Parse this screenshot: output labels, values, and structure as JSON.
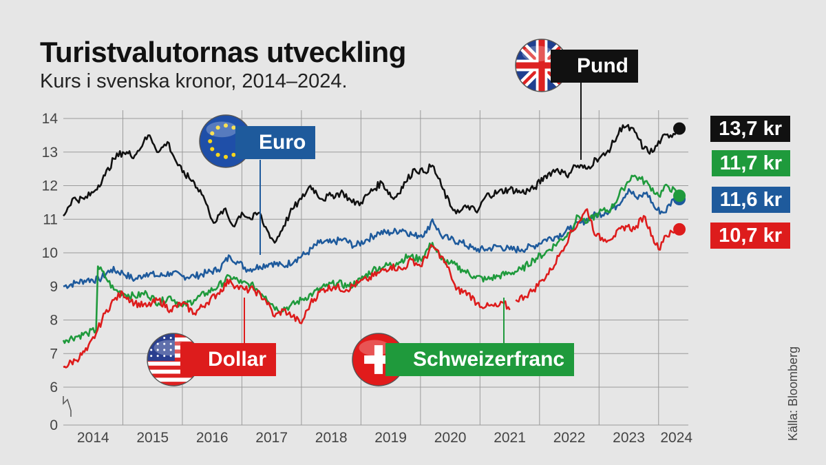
{
  "title": "Turistvalutornas utveckling",
  "subtitle": "Kurs i svenska kronor, 2014–2024.",
  "source": "Källa: Bloomberg",
  "colors": {
    "pund": "#111111",
    "euro": "#1e5a9c",
    "dollar": "#dd1c1c",
    "franc": "#1f9a3c",
    "background": "#e6e6e6",
    "grid": "#9a9a9a"
  },
  "callouts": {
    "pund": {
      "label": "Pund",
      "icon": "uk-flag-icon"
    },
    "euro": {
      "label": "Euro",
      "icon": "eu-flag-icon"
    },
    "dollar": {
      "label": "Dollar",
      "icon": "us-flag-icon"
    },
    "franc": {
      "label": "Schweizerfranc",
      "icon": "swiss-flag-icon"
    }
  },
  "end_labels": {
    "pund": "13,7 kr",
    "franc": "11,7 kr",
    "euro": "11,6 kr",
    "dollar": "10,7 kr"
  },
  "chart_data": {
    "type": "line",
    "y_axis_break": true,
    "ylim": [
      0,
      14
    ],
    "y_ticks": [
      "0",
      "6",
      "7",
      "8",
      "9",
      "10",
      "11",
      "12",
      "13",
      "14"
    ],
    "x_tick_labels": [
      "2014",
      "2015",
      "2016",
      "2017",
      "2018",
      "2019",
      "2020",
      "2021",
      "2022",
      "2023",
      "2024"
    ],
    "xlim": [
      2014.0,
      2024.5
    ],
    "grid": true,
    "series": [
      {
        "name": "Pund",
        "color": "#111111",
        "end_value": 13.7,
        "points": [
          [
            2014.0,
            11.1
          ],
          [
            2014.15,
            11.6
          ],
          [
            2014.35,
            11.6
          ],
          [
            2014.5,
            11.8
          ],
          [
            2014.7,
            12.3
          ],
          [
            2014.85,
            12.8
          ],
          [
            2015.0,
            13.0
          ],
          [
            2015.2,
            12.9
          ],
          [
            2015.35,
            13.3
          ],
          [
            2015.45,
            13.5
          ],
          [
            2015.6,
            13.0
          ],
          [
            2015.75,
            13.3
          ],
          [
            2015.9,
            12.7
          ],
          [
            2016.0,
            12.4
          ],
          [
            2016.2,
            12.1
          ],
          [
            2016.35,
            11.7
          ],
          [
            2016.45,
            11.2
          ],
          [
            2016.55,
            10.9
          ],
          [
            2016.7,
            11.3
          ],
          [
            2016.85,
            10.8
          ],
          [
            2017.0,
            11.2
          ],
          [
            2017.15,
            11.0
          ],
          [
            2017.3,
            11.2
          ],
          [
            2017.35,
            10.9
          ],
          [
            2017.45,
            10.6
          ],
          [
            2017.55,
            10.3
          ],
          [
            2017.7,
            10.8
          ],
          [
            2017.85,
            11.3
          ],
          [
            2018.0,
            11.6
          ],
          [
            2018.15,
            12.0
          ],
          [
            2018.35,
            11.6
          ],
          [
            2018.5,
            11.7
          ],
          [
            2018.7,
            11.8
          ],
          [
            2018.85,
            11.5
          ],
          [
            2019.0,
            11.5
          ],
          [
            2019.15,
            11.8
          ],
          [
            2019.35,
            12.1
          ],
          [
            2019.55,
            11.6
          ],
          [
            2019.75,
            12.1
          ],
          [
            2019.9,
            12.5
          ],
          [
            2020.05,
            12.4
          ],
          [
            2020.2,
            12.6
          ],
          [
            2020.35,
            12.0
          ],
          [
            2020.5,
            11.4
          ],
          [
            2020.65,
            11.2
          ],
          [
            2020.8,
            11.4
          ],
          [
            2020.95,
            11.2
          ],
          [
            2021.1,
            11.7
          ],
          [
            2021.3,
            11.8
          ],
          [
            2021.5,
            11.9
          ],
          [
            2021.7,
            11.8
          ],
          [
            2021.9,
            11.9
          ],
          [
            2022.1,
            12.3
          ],
          [
            2022.3,
            12.5
          ],
          [
            2022.45,
            12.3
          ],
          [
            2022.6,
            12.6
          ],
          [
            2022.8,
            12.5
          ],
          [
            2022.95,
            12.8
          ],
          [
            2023.1,
            12.9
          ],
          [
            2023.25,
            13.3
          ],
          [
            2023.4,
            13.8
          ],
          [
            2023.6,
            13.6
          ],
          [
            2023.75,
            13.1
          ],
          [
            2023.9,
            13.0
          ],
          [
            2024.05,
            13.4
          ],
          [
            2024.2,
            13.5
          ],
          [
            2024.35,
            13.7
          ]
        ]
      },
      {
        "name": "Euro",
        "color": "#1e5a9c",
        "end_value": 11.6,
        "points": [
          [
            2014.0,
            9.0
          ],
          [
            2014.2,
            9.1
          ],
          [
            2014.4,
            9.2
          ],
          [
            2014.6,
            9.2
          ],
          [
            2014.8,
            9.5
          ],
          [
            2015.0,
            9.4
          ],
          [
            2015.2,
            9.2
          ],
          [
            2015.4,
            9.4
          ],
          [
            2015.6,
            9.3
          ],
          [
            2015.8,
            9.4
          ],
          [
            2016.0,
            9.3
          ],
          [
            2016.2,
            9.3
          ],
          [
            2016.4,
            9.4
          ],
          [
            2016.6,
            9.5
          ],
          [
            2016.8,
            9.9
          ],
          [
            2016.95,
            9.7
          ],
          [
            2017.1,
            9.5
          ],
          [
            2017.3,
            9.6
          ],
          [
            2017.5,
            9.7
          ],
          [
            2017.7,
            9.6
          ],
          [
            2017.9,
            9.8
          ],
          [
            2018.1,
            10.0
          ],
          [
            2018.3,
            10.3
          ],
          [
            2018.5,
            10.3
          ],
          [
            2018.7,
            10.4
          ],
          [
            2018.9,
            10.2
          ],
          [
            2019.1,
            10.4
          ],
          [
            2019.3,
            10.6
          ],
          [
            2019.5,
            10.6
          ],
          [
            2019.7,
            10.7
          ],
          [
            2019.9,
            10.5
          ],
          [
            2020.1,
            10.6
          ],
          [
            2020.2,
            11.0
          ],
          [
            2020.35,
            10.5
          ],
          [
            2020.5,
            10.4
          ],
          [
            2020.7,
            10.3
          ],
          [
            2020.9,
            10.1
          ],
          [
            2021.1,
            10.1
          ],
          [
            2021.3,
            10.2
          ],
          [
            2021.5,
            10.1
          ],
          [
            2021.7,
            10.1
          ],
          [
            2021.9,
            10.2
          ],
          [
            2022.1,
            10.4
          ],
          [
            2022.3,
            10.5
          ],
          [
            2022.5,
            10.7
          ],
          [
            2022.7,
            10.9
          ],
          [
            2022.9,
            11.1
          ],
          [
            2023.1,
            11.2
          ],
          [
            2023.3,
            11.4
          ],
          [
            2023.5,
            11.9
          ],
          [
            2023.65,
            11.6
          ],
          [
            2023.8,
            11.8
          ],
          [
            2023.95,
            11.3
          ],
          [
            2024.1,
            11.2
          ],
          [
            2024.25,
            11.6
          ],
          [
            2024.35,
            11.6
          ]
        ]
      },
      {
        "name": "Dollar",
        "color": "#dd1c1c",
        "end_value": 10.7,
        "points": [
          [
            2014.0,
            6.6
          ],
          [
            2014.2,
            6.8
          ],
          [
            2014.4,
            7.1
          ],
          [
            2014.55,
            7.6
          ],
          [
            2014.7,
            8.2
          ],
          [
            2014.85,
            8.6
          ],
          [
            2015.0,
            8.8
          ],
          [
            2015.2,
            8.5
          ],
          [
            2015.4,
            8.4
          ],
          [
            2015.6,
            8.6
          ],
          [
            2015.8,
            8.3
          ],
          [
            2016.0,
            8.5
          ],
          [
            2016.2,
            8.2
          ],
          [
            2016.4,
            8.5
          ],
          [
            2016.6,
            8.8
          ],
          [
            2016.8,
            9.2
          ],
          [
            2016.9,
            9.0
          ],
          [
            2017.05,
            8.9
          ],
          [
            2017.2,
            8.9
          ],
          [
            2017.4,
            8.6
          ],
          [
            2017.55,
            8.1
          ],
          [
            2017.7,
            8.3
          ],
          [
            2017.85,
            8.1
          ],
          [
            2018.0,
            7.9
          ],
          [
            2018.15,
            8.5
          ],
          [
            2018.35,
            8.9
          ],
          [
            2018.55,
            9.0
          ],
          [
            2018.75,
            8.9
          ],
          [
            2018.95,
            9.1
          ],
          [
            2019.1,
            9.2
          ],
          [
            2019.3,
            9.4
          ],
          [
            2019.5,
            9.6
          ],
          [
            2019.7,
            9.5
          ],
          [
            2019.85,
            9.8
          ],
          [
            2020.0,
            9.6
          ],
          [
            2020.2,
            10.2
          ],
          [
            2020.35,
            9.9
          ],
          [
            2020.5,
            9.4
          ],
          [
            2020.6,
            8.9
          ],
          [
            2020.8,
            8.8
          ],
          [
            2020.95,
            8.5
          ],
          [
            2021.1,
            8.4
          ],
          [
            2021.3,
            8.4
          ],
          [
            2021.4,
            8.5
          ],
          [
            2021.5,
            8.3
          ],
          [
            null,
            null
          ],
          [
            2021.6,
            8.6
          ],
          [
            2021.75,
            8.7
          ],
          [
            2021.9,
            8.9
          ],
          [
            2022.05,
            9.2
          ],
          [
            2022.2,
            9.5
          ],
          [
            2022.35,
            10.0
          ],
          [
            2022.5,
            10.5
          ],
          [
            2022.65,
            10.9
          ],
          [
            2022.8,
            11.3
          ],
          [
            2022.95,
            10.5
          ],
          [
            2023.1,
            10.4
          ],
          [
            2023.25,
            10.5
          ],
          [
            2023.45,
            10.8
          ],
          [
            2023.6,
            10.7
          ],
          [
            2023.75,
            11.1
          ],
          [
            2023.9,
            10.5
          ],
          [
            2024.0,
            10.1
          ],
          [
            2024.1,
            10.5
          ],
          [
            2024.25,
            10.6
          ],
          [
            2024.35,
            10.7
          ]
        ]
      },
      {
        "name": "Schweizerfranc",
        "color": "#1f9a3c",
        "end_value": 11.7,
        "points": [
          [
            2014.0,
            7.4
          ],
          [
            2014.2,
            7.5
          ],
          [
            2014.4,
            7.6
          ],
          [
            2014.55,
            7.7
          ],
          [
            2014.58,
            9.6
          ],
          [
            2014.7,
            9.3
          ],
          [
            2014.85,
            8.9
          ],
          [
            2015.0,
            8.8
          ],
          [
            2015.2,
            8.7
          ],
          [
            2015.4,
            8.8
          ],
          [
            2015.6,
            8.5
          ],
          [
            2015.8,
            8.7
          ],
          [
            2016.0,
            8.4
          ],
          [
            2016.2,
            8.6
          ],
          [
            2016.4,
            8.8
          ],
          [
            2016.6,
            9.0
          ],
          [
            2016.8,
            9.3
          ],
          [
            2017.0,
            9.1
          ],
          [
            2017.2,
            9.0
          ],
          [
            2017.4,
            8.7
          ],
          [
            2017.6,
            8.3
          ],
          [
            2017.8,
            8.4
          ],
          [
            2018.0,
            8.6
          ],
          [
            2018.2,
            8.8
          ],
          [
            2018.4,
            9.0
          ],
          [
            2018.6,
            9.1
          ],
          [
            2018.8,
            9.0
          ],
          [
            2019.0,
            9.2
          ],
          [
            2019.2,
            9.5
          ],
          [
            2019.4,
            9.6
          ],
          [
            2019.6,
            9.7
          ],
          [
            2019.8,
            9.9
          ],
          [
            2020.0,
            9.8
          ],
          [
            2020.2,
            10.3
          ],
          [
            2020.35,
            9.8
          ],
          [
            2020.5,
            9.7
          ],
          [
            2020.7,
            9.5
          ],
          [
            2020.9,
            9.3
          ],
          [
            2021.1,
            9.2
          ],
          [
            2021.3,
            9.3
          ],
          [
            2021.5,
            9.4
          ],
          [
            2021.7,
            9.5
          ],
          [
            2021.9,
            9.8
          ],
          [
            2022.1,
            10.0
          ],
          [
            2022.3,
            10.3
          ],
          [
            2022.5,
            10.6
          ],
          [
            2022.65,
            11.1
          ],
          [
            2022.8,
            10.9
          ],
          [
            2023.0,
            11.2
          ],
          [
            2023.2,
            11.3
          ],
          [
            2023.4,
            11.9
          ],
          [
            2023.55,
            12.3
          ],
          [
            2023.7,
            12.2
          ],
          [
            2023.85,
            12.0
          ],
          [
            2024.0,
            11.7
          ],
          [
            2024.15,
            12.0
          ],
          [
            2024.35,
            11.7
          ]
        ]
      }
    ]
  }
}
